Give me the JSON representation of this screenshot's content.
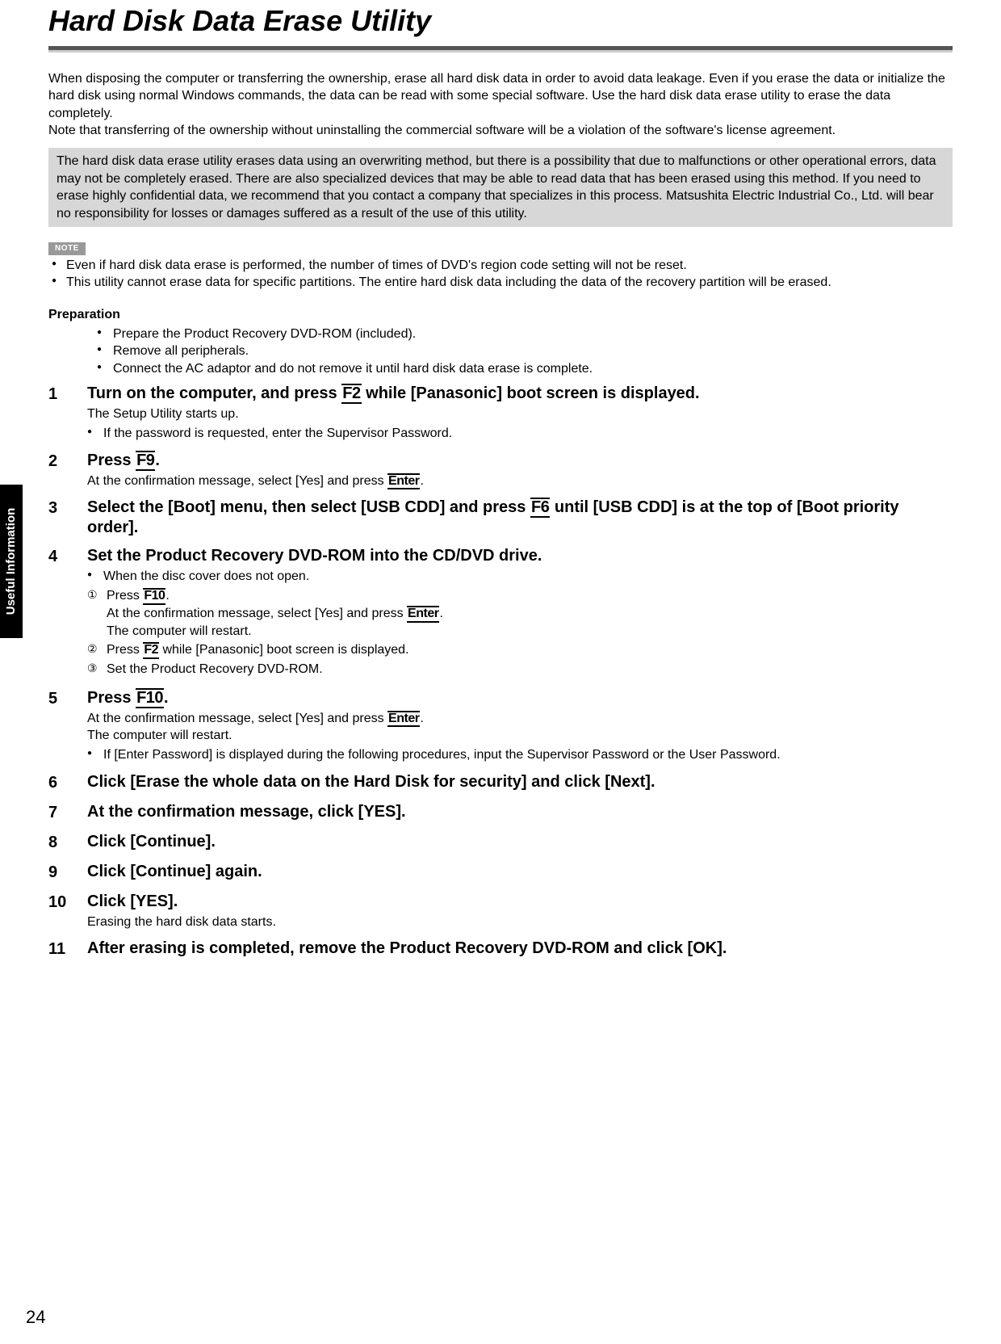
{
  "title": "Hard Disk Data Erase Utility",
  "side_tab": "Useful Information",
  "page_number": "24",
  "intro": {
    "p1": "When disposing the computer or transferring the ownership, erase all hard disk data in order to avoid data leakage. Even if you erase the data or initialize the hard disk using normal Windows commands, the data can be read with some special software. Use the hard disk data erase utility to erase the data completely.",
    "p2": "Note that transferring of the ownership without uninstalling the commercial software will be a violation of the software's license agreement."
  },
  "disclaimer": "The hard disk data erase utility erases data using an overwriting method, but there is a possibility that due to malfunctions or other operational errors, data may not be completely erased. There are also specialized devices that may be able to read data that has been erased using this method. If you need to erase highly confidential data, we recommend that you contact a company that specializes in this process. Matsushita Electric Industrial Co., Ltd. will bear no responsibility for losses or damages suffered as a result of the use of this utility.",
  "note_label": "NOTE",
  "notes": {
    "n0": "Even if hard disk data erase is performed, the number of times of DVD's region code setting will not be reset.",
    "n1": "This utility cannot erase data for specific partitions. The entire hard disk data including the data of the recovery partition will be erased."
  },
  "prep": {
    "heading": "Preparation",
    "i0": "Prepare the Product Recovery DVD-ROM (included).",
    "i1": "Remove all peripherals.",
    "i2": "Connect the AC adaptor and do not remove it until hard disk data erase is complete."
  },
  "keys": {
    "f2": "F2",
    "f6": "F6",
    "f9": "F9",
    "f10": "F10",
    "enter": "Enter"
  },
  "steps": {
    "s1": {
      "head_a": "Turn on the computer, and press ",
      "head_b": " while [Panasonic] boot screen is displayed.",
      "sub": "The Setup Utility starts up.",
      "b0": "If the password is requested, enter the Supervisor Password."
    },
    "s2": {
      "head_a": "Press ",
      "sub_a": "At the confirmation message, select [Yes] and press "
    },
    "s3": {
      "head_a": "Select the [Boot] menu, then select [USB CDD] and press ",
      "head_b": " until [USB CDD] is at the top of [Boot priority order]."
    },
    "s4": {
      "head": "Set the Product Recovery DVD-ROM into the CD/DVD drive.",
      "b0": "When the disc cover does not open.",
      "c1a": "Press ",
      "c1b": "At the confirmation message, select [Yes] and press ",
      "c1c": "The computer will restart.",
      "c2a": "Press ",
      "c2b": " while [Panasonic] boot screen is displayed.",
      "c3": "Set the Product Recovery DVD-ROM."
    },
    "s5": {
      "head_a": "Press ",
      "sub_a": "At the confirmation message, select [Yes] and press ",
      "sub_b": "The computer will restart.",
      "b0": "If [Enter Password] is displayed during the following procedures, input the Supervisor Password or the User Password."
    },
    "s6": {
      "head": "Click [Erase the whole data on the Hard Disk for security] and click [Next]."
    },
    "s7": {
      "head": "At the confirmation message, click [YES]."
    },
    "s8": {
      "head": "Click [Continue]."
    },
    "s9": {
      "head": "Click [Continue] again."
    },
    "s10": {
      "head": "Click [YES].",
      "sub": "Erasing the hard disk data starts."
    },
    "s11": {
      "head": "After erasing is completed, remove the Product Recovery DVD-ROM and click [OK]."
    }
  }
}
